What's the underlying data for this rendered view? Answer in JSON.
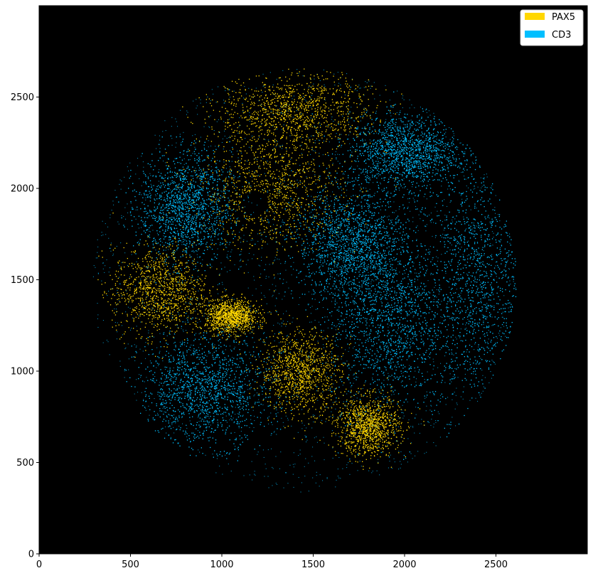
{
  "chart_data": {
    "type": "scatter",
    "title": "",
    "xlabel": "",
    "ylabel": "",
    "xlim": [
      0,
      3000
    ],
    "ylim": [
      0,
      3000
    ],
    "background": "#000000",
    "grid": false,
    "legend_placement": "top-right",
    "x_ticks": [
      0,
      500,
      1000,
      1500,
      2000,
      2500
    ],
    "y_ticks": [
      0,
      500,
      1000,
      1500,
      2000,
      2500
    ],
    "x_tick_labels": [
      "0",
      "500",
      "1000",
      "1500",
      "2000",
      "2500"
    ],
    "y_tick_labels": [
      "0",
      "500",
      "1000",
      "1500",
      "2000",
      "2500"
    ],
    "tissue_region": {
      "center": [
        1450,
        1500
      ],
      "radius": 1160
    },
    "series": [
      {
        "name": "PAX5",
        "color": "#FFD700",
        "regions": [
          {
            "center": [
              1270,
              2000
            ],
            "radius": [
              380,
              330
            ]
          },
          {
            "center": [
              1400,
              2430
            ],
            "radius": [
              420,
              200
            ]
          },
          {
            "center": [
              660,
              1440
            ],
            "radius": [
              260,
              240
            ]
          },
          {
            "center": [
              1050,
              1300
            ],
            "radius": [
              140,
              90
            ]
          },
          {
            "center": [
              1430,
              1000
            ],
            "radius": [
              220,
              220
            ]
          },
          {
            "center": [
              1800,
              700
            ],
            "radius": [
              170,
              160
            ]
          }
        ]
      },
      {
        "name": "CD3",
        "color": "#00BFFF",
        "regions": [
          {
            "center": [
              2400,
              1450
            ],
            "radius": [
              330,
              700
            ]
          },
          {
            "center": [
              1900,
              1300
            ],
            "radius": [
              300,
              500
            ]
          },
          {
            "center": [
              900,
              900
            ],
            "radius": [
              350,
              300
            ]
          },
          {
            "center": [
              1700,
              1700
            ],
            "radius": [
              300,
              300
            ]
          },
          {
            "center": [
              800,
              1900
            ],
            "radius": [
              250,
              300
            ]
          },
          {
            "center": [
              2000,
              2200
            ],
            "radius": [
              300,
              200
            ]
          }
        ]
      }
    ]
  }
}
